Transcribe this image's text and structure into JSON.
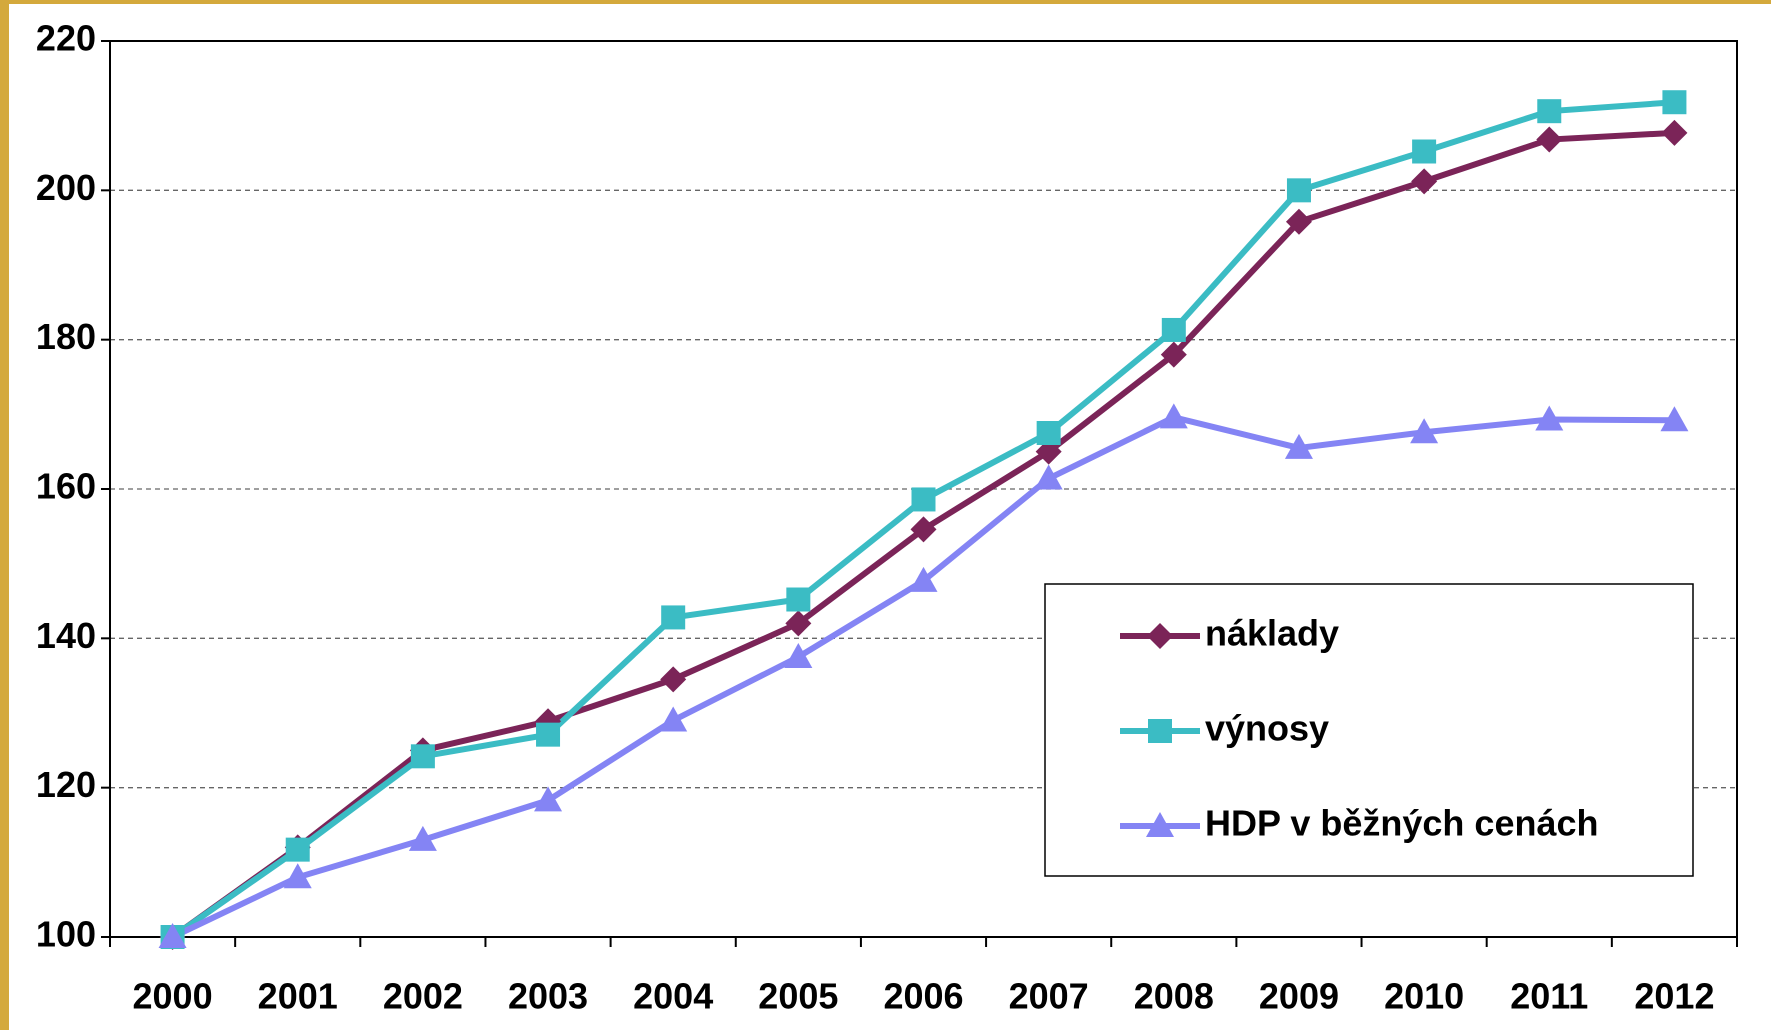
{
  "chart_data": {
    "type": "line",
    "categories": [
      "2000",
      "2001",
      "2002",
      "2003",
      "2004",
      "2005",
      "2006",
      "2007",
      "2008",
      "2009",
      "2010",
      "2011",
      "2012"
    ],
    "series": [
      {
        "name": "náklady",
        "color": "#7b2458",
        "marker": "diamond",
        "values": [
          100,
          112,
          125,
          128.9,
          134.5,
          142,
          154.6,
          165,
          178,
          195.8,
          201.2,
          206.8,
          207.7
        ]
      },
      {
        "name": "výnosy",
        "color": "#3bbcc4",
        "marker": "square",
        "values": [
          100,
          111.7,
          124.2,
          127.1,
          142.8,
          145.2,
          158.6,
          167.5,
          181.3,
          200,
          205.2,
          210.6,
          211.8
        ]
      },
      {
        "name": "HDP v běžných cenách",
        "color": "#8484f4",
        "marker": "triangle",
        "values": [
          100,
          108,
          113,
          118.3,
          129,
          137.5,
          147.7,
          161.4,
          169.6,
          165.5,
          167.6,
          169.3,
          169.2
        ]
      }
    ],
    "ylim": [
      100,
      220
    ],
    "yticks": [
      100,
      120,
      140,
      160,
      180,
      200,
      220
    ],
    "grid": true,
    "legend": "lower right"
  }
}
